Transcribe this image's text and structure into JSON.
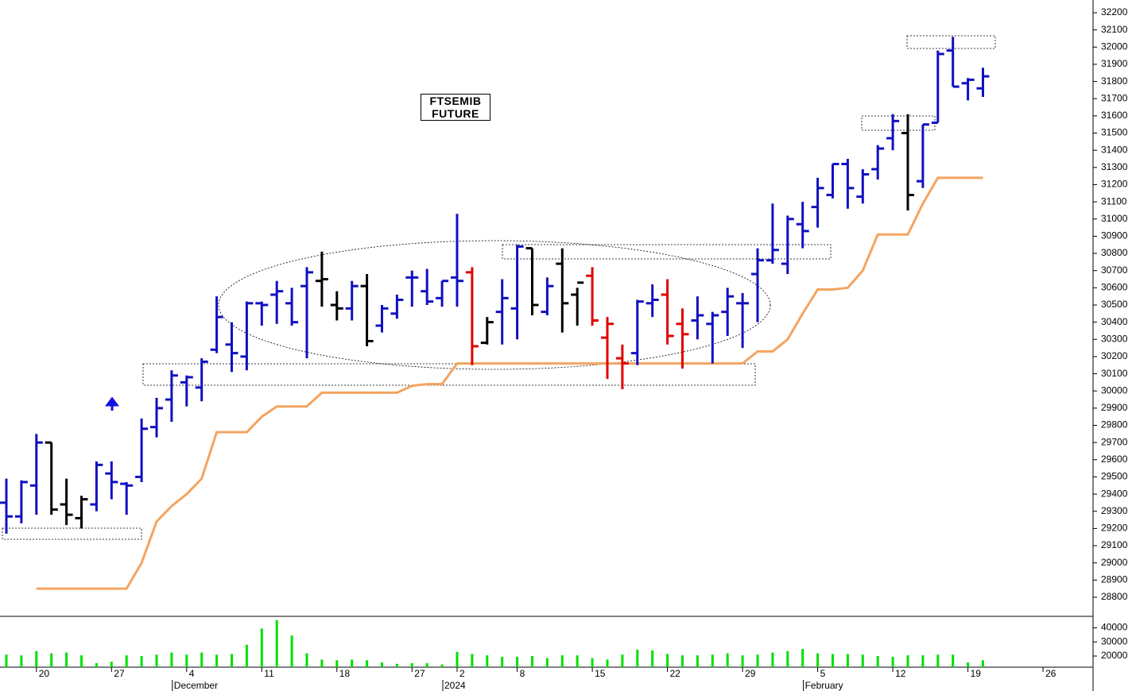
{
  "chart_data": [
    {
      "type": "ohlc",
      "title": "FTSEMIB FUTURE",
      "categories": [
        null,
        null,
        "20",
        null,
        null,
        null,
        null,
        "27",
        null,
        null,
        null,
        null,
        "4",
        null,
        null,
        null,
        null,
        "11",
        null,
        null,
        null,
        null,
        "18",
        null,
        null,
        null,
        null,
        "27",
        null,
        null,
        "2",
        null,
        null,
        null,
        "8",
        null,
        null,
        null,
        null,
        "15",
        null,
        null,
        null,
        null,
        "22",
        null,
        null,
        null,
        null,
        "29",
        null,
        null,
        null,
        null,
        "5",
        null,
        null,
        null,
        null,
        "12",
        null,
        null,
        null,
        null,
        "19",
        null,
        null,
        null,
        null,
        "26"
      ],
      "category_groups": [
        {
          "label": "December",
          "start": 12
        },
        {
          "label": "2024",
          "start": 30
        },
        {
          "label": "February",
          "start": 54
        }
      ],
      "open": [
        29350,
        29270,
        29450,
        29700,
        29340,
        29260,
        29340,
        29520,
        29460,
        29500,
        29790,
        29950,
        30050,
        30020,
        30240,
        30270,
        30200,
        30510,
        30560,
        30510,
        30610,
        30640,
        30500,
        30480,
        30610,
        30380,
        30450,
        30660,
        30580,
        30540,
        30660,
        30690,
        30280,
        30460,
        30480,
        30830,
        30460,
        30740,
        30560,
        30670,
        30310,
        30190,
        30220,
        30510,
        30560,
        30390,
        30410,
        30390,
        30460,
        30510,
        30680,
        30760,
        30740,
        30970,
        31070,
        31140,
        31320,
        31130,
        31290,
        31470,
        31500,
        31220,
        31560,
        31980,
        31790,
        31760,
        null,
        null,
        null,
        null
      ],
      "high": [
        29490,
        29480,
        29750,
        29700,
        29490,
        29390,
        29590,
        29590,
        29470,
        29840,
        29960,
        30120,
        30090,
        30190,
        30550,
        30400,
        30520,
        30520,
        30640,
        30600,
        30720,
        30810,
        30580,
        30640,
        30680,
        30500,
        30560,
        30700,
        30710,
        30640,
        31030,
        30720,
        30430,
        30650,
        30850,
        30830,
        30660,
        30830,
        30600,
        30720,
        30430,
        30270,
        30530,
        30620,
        30650,
        30480,
        30550,
        30460,
        30600,
        30570,
        30830,
        31090,
        31020,
        31100,
        31240,
        31320,
        31350,
        31290,
        31430,
        31610,
        31610,
        31550,
        31980,
        32060,
        31820,
        31880,
        null,
        null,
        null,
        null
      ],
      "low": [
        29170,
        29230,
        29280,
        29280,
        29220,
        29200,
        29300,
        29370,
        29280,
        29470,
        29730,
        29820,
        29910,
        29940,
        30220,
        30110,
        30120,
        30380,
        30390,
        30380,
        30190,
        30490,
        30410,
        30410,
        30260,
        30340,
        30420,
        30490,
        30500,
        30490,
        30490,
        30150,
        30270,
        30270,
        30300,
        30440,
        30440,
        30340,
        30380,
        30380,
        30070,
        30010,
        30150,
        30430,
        30270,
        30130,
        30300,
        30160,
        30320,
        30250,
        30400,
        30740,
        30680,
        30830,
        30950,
        31120,
        31060,
        31090,
        31230,
        31400,
        31050,
        31180,
        31560,
        31770,
        31690,
        31710,
        null,
        null,
        null,
        null
      ],
      "close": [
        29270,
        29470,
        29700,
        29310,
        29280,
        29370,
        29570,
        29470,
        29450,
        29780,
        29900,
        30090,
        30080,
        30170,
        30430,
        30220,
        30510,
        30500,
        30580,
        30400,
        30690,
        30650,
        30480,
        30610,
        30290,
        30480,
        30530,
        30660,
        30520,
        30640,
        30640,
        30260,
        30400,
        30540,
        30840,
        30500,
        30610,
        30510,
        30630,
        30410,
        30390,
        30160,
        30520,
        30530,
        30320,
        30330,
        30440,
        30440,
        30550,
        30510,
        30760,
        30820,
        31000,
        30930,
        31180,
        31320,
        31180,
        31260,
        31410,
        31570,
        31140,
        31550,
        31960,
        31770,
        31810,
        31830,
        null,
        null,
        null,
        null
      ],
      "bar_colors": [
        "#1010c0",
        "#1010c0",
        "#1010c0",
        "#000000",
        "#000000",
        "#000000",
        "#1010c0",
        "#1010c0",
        "#1010c0",
        "#1010c0",
        "#1010c0",
        "#1010c0",
        "#1010c0",
        "#1010c0",
        "#1010c0",
        "#1010c0",
        "#1010c0",
        "#1010c0",
        "#1010c0",
        "#1010c0",
        "#1010c0",
        "#000000",
        "#000000",
        "#1010c0",
        "#000000",
        "#1010c0",
        "#1010c0",
        "#1010c0",
        "#1010c0",
        "#1010c0",
        "#1010c0",
        "#e00000",
        "#000000",
        "#1010c0",
        "#1010c0",
        "#000000",
        "#1010c0",
        "#000000",
        "#000000",
        "#e00000",
        "#e00000",
        "#e00000",
        "#1010c0",
        "#1010c0",
        "#e00000",
        "#e00000",
        "#1010c0",
        "#1010c0",
        "#1010c0",
        "#1010c0",
        "#1010c0",
        "#1010c0",
        "#1010c0",
        "#1010c0",
        "#1010c0",
        "#1010c0",
        "#1010c0",
        "#1010c0",
        "#1010c0",
        "#1010c0",
        "#000000",
        "#1010c0",
        "#1010c0",
        "#1010c0",
        "#1010c0",
        "#1010c0",
        null,
        null,
        null,
        null
      ],
      "trailing_line": {
        "color": "#f4a460",
        "values": [
          null,
          null,
          28850,
          28850,
          28850,
          28850,
          28850,
          28850,
          28850,
          29000,
          29240,
          29330,
          29400,
          29490,
          29760,
          29760,
          29760,
          29850,
          29910,
          29910,
          29910,
          29990,
          29990,
          29990,
          29990,
          29990,
          29990,
          30030,
          30040,
          30040,
          30160,
          30160,
          30160,
          30160,
          30160,
          30160,
          30160,
          30160,
          30160,
          30160,
          30160,
          30160,
          30160,
          30160,
          30160,
          30160,
          30160,
          30160,
          30160,
          30160,
          30230,
          30230,
          30300,
          30450,
          30590,
          30590,
          30600,
          30700,
          30910,
          30910,
          30910,
          31090,
          31240,
          31240,
          31240,
          31240,
          null,
          null,
          null,
          null
        ]
      },
      "ylim": [
        28689,
        32274
      ],
      "yticks": [
        28800,
        28900,
        29000,
        29100,
        29200,
        29300,
        29400,
        29500,
        29600,
        29700,
        29800,
        29900,
        30000,
        30100,
        30200,
        30300,
        30400,
        30500,
        30600,
        30700,
        30800,
        30900,
        31000,
        31100,
        31200,
        31300,
        31400,
        31500,
        31600,
        31700,
        31800,
        31900,
        32000,
        32100,
        32200
      ]
    },
    {
      "type": "bar",
      "color": "#00e000",
      "values": [
        21000,
        20500,
        23500,
        22000,
        22500,
        20500,
        15000,
        16000,
        20500,
        20000,
        21000,
        22500,
        21000,
        22500,
        21000,
        21500,
        28000,
        39500,
        45500,
        34500,
        22000,
        17500,
        17000,
        17500,
        17000,
        15500,
        14500,
        15000,
        15000,
        14000,
        23000,
        21500,
        20500,
        19500,
        19500,
        20000,
        18500,
        20500,
        20500,
        18500,
        17500,
        21000,
        24500,
        24000,
        21500,
        20500,
        20500,
        21000,
        22000,
        20500,
        21000,
        22500,
        23500,
        25000,
        22000,
        21500,
        21500,
        21000,
        20000,
        19500,
        20500,
        20500,
        21000,
        21000,
        15500,
        17000,
        null,
        null,
        null,
        null
      ],
      "ylim": [
        12125,
        48125
      ],
      "yticks": [
        20000,
        30000,
        40000
      ]
    }
  ]
}
